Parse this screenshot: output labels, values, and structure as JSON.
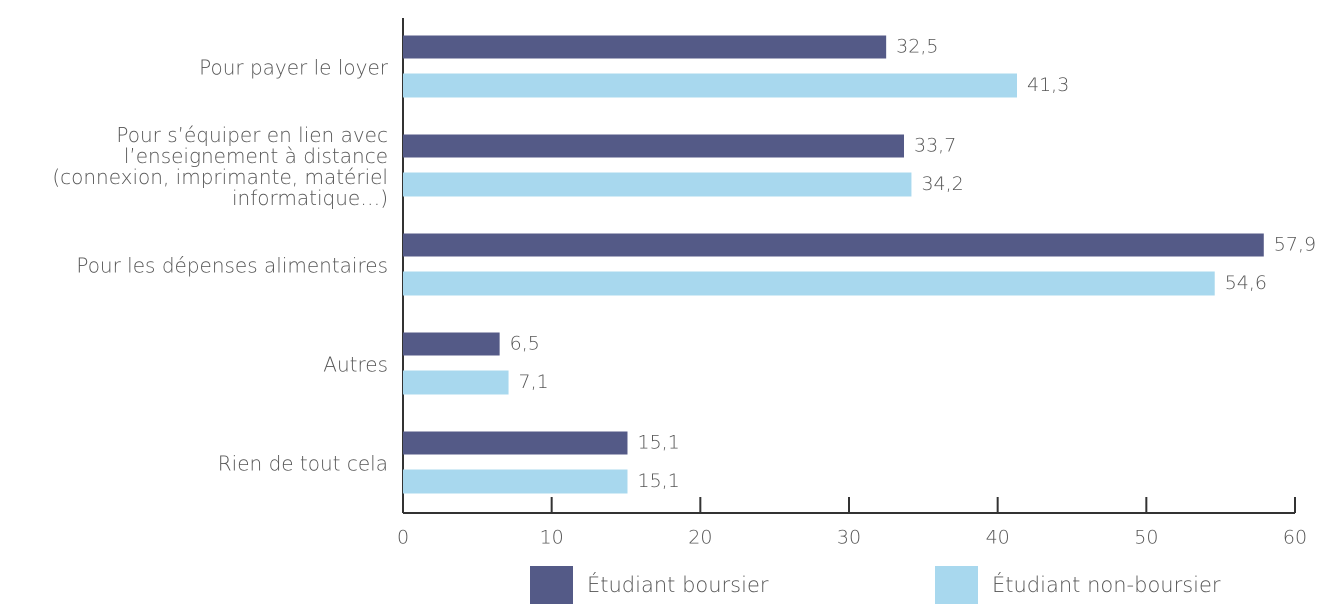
{
  "chart_data": {
    "type": "hbar",
    "categories": [
      "Pour payer le loyer",
      "Pour s’équiper en lien avec l’enseignement à distance (connexion, imprimante, matériel informatique…)",
      "Pour les dépenses alimentaires",
      "Autres",
      "Rien de tout cela"
    ],
    "series": [
      {
        "name": "Étudiant boursier",
        "color": "#545a87",
        "values": [
          32.5,
          33.7,
          57.9,
          6.5,
          15.1
        ],
        "value_labels": [
          "32,5",
          "33,7",
          "57,9",
          "6,5",
          "15,1"
        ]
      },
      {
        "name": "Étudiant non-boursier",
        "color": "#a8d8ee",
        "values": [
          41.3,
          34.2,
          54.6,
          7.1,
          15.1
        ],
        "value_labels": [
          "41,3",
          "34,2",
          "54,6",
          "7,1",
          "15,1"
        ]
      }
    ],
    "xlim": [
      0,
      60
    ],
    "xticks": [
      0,
      10,
      20,
      30,
      40,
      50,
      60
    ]
  }
}
